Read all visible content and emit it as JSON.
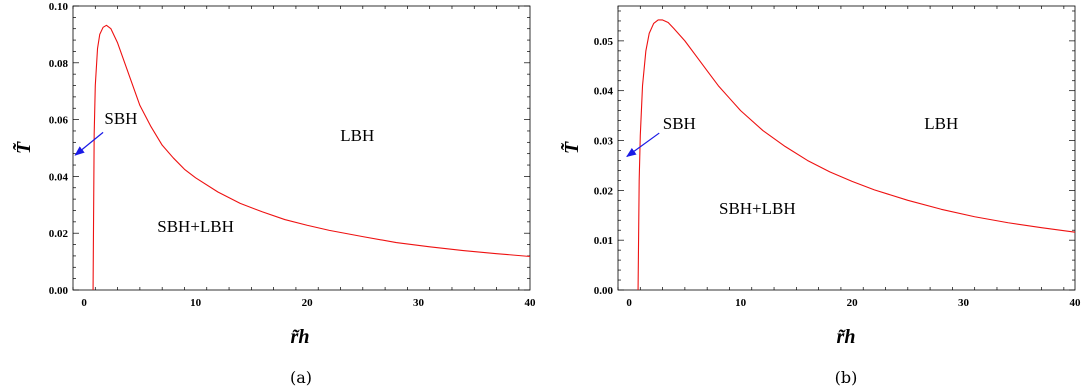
{
  "chart_data": [
    {
      "type": "line",
      "caption": "(a)",
      "xlabel": "r̃h",
      "ylabel": "T̃",
      "xlim": [
        -1,
        40
      ],
      "ylim": [
        0,
        0.1
      ],
      "xticks": [
        0,
        10,
        20,
        30,
        40
      ],
      "xtick_labels": [
        "0",
        "10",
        "20",
        "30",
        "40"
      ],
      "yticks": [
        0,
        0.02,
        0.04,
        0.06,
        0.08,
        0.1
      ],
      "ytick_labels": [
        "0.00",
        "0.02",
        "0.04",
        "0.06",
        "0.08",
        "0.10"
      ],
      "line_color": "#ee1111",
      "series": [
        {
          "x": [
            0.8,
            0.9,
            1.0,
            1.2,
            1.4,
            1.7,
            2.0,
            2.4,
            3.0,
            4.0,
            5.0,
            6.0,
            7.0,
            8.0,
            9.0,
            10.0,
            12.0,
            14.0,
            16.0,
            18.0,
            20.0,
            22.0,
            25.0,
            28.0,
            31.0,
            34.0,
            37.0,
            40.0
          ],
          "y": [
            0.0,
            0.055,
            0.072,
            0.085,
            0.09,
            0.0925,
            0.0932,
            0.092,
            0.087,
            0.076,
            0.065,
            0.0575,
            0.051,
            0.0465,
            0.0425,
            0.0395,
            0.0345,
            0.0305,
            0.0275,
            0.0248,
            0.0228,
            0.021,
            0.0188,
            0.0167,
            0.0152,
            0.0139,
            0.0128,
            0.0118
          ]
        }
      ],
      "annotations": [
        {
          "text": "SBH",
          "x": 3.3,
          "y": 0.0605
        },
        {
          "text": "LBH",
          "x": 24.5,
          "y": 0.0545
        },
        {
          "text": "SBH+LBH",
          "x": 10.0,
          "y": 0.0225
        }
      ],
      "arrow": {
        "from": [
          1.7,
          0.0555
        ],
        "to": [
          -0.8,
          0.0475
        ],
        "color": "#1a1ae6"
      }
    },
    {
      "type": "line",
      "caption": "(b)",
      "xlabel": "r̃h",
      "ylabel": "T̃",
      "xlim": [
        -1,
        40
      ],
      "ylim": [
        0,
        0.057
      ],
      "xticks": [
        0,
        10,
        20,
        30,
        40
      ],
      "xtick_labels": [
        "0",
        "10",
        "20",
        "30",
        "40"
      ],
      "yticks": [
        0,
        0.01,
        0.02,
        0.03,
        0.04,
        0.05
      ],
      "ytick_labels": [
        "0.00",
        "0.01",
        "0.02",
        "0.03",
        "0.04",
        "0.05"
      ],
      "line_color": "#ee1111",
      "series": [
        {
          "x": [
            0.8,
            0.9,
            1.0,
            1.2,
            1.5,
            1.8,
            2.2,
            2.6,
            3.0,
            3.5,
            4.0,
            5.0,
            6.0,
            7.0,
            8.0,
            9.0,
            10.0,
            12.0,
            14.0,
            16.0,
            18.0,
            20.0,
            22.0,
            25.0,
            28.0,
            31.0,
            34.0,
            37.0,
            40.0
          ],
          "y": [
            0.0,
            0.022,
            0.031,
            0.041,
            0.048,
            0.0515,
            0.0535,
            0.0542,
            0.0542,
            0.0537,
            0.0525,
            0.05,
            0.047,
            0.044,
            0.041,
            0.0385,
            0.036,
            0.032,
            0.0288,
            0.026,
            0.0237,
            0.0218,
            0.0201,
            0.018,
            0.0162,
            0.0147,
            0.0135,
            0.0125,
            0.0116
          ]
        }
      ],
      "annotations": [
        {
          "text": "SBH",
          "x": 4.5,
          "y": 0.0335
        },
        {
          "text": "LBH",
          "x": 28.0,
          "y": 0.0335
        },
        {
          "text": "SBH+LBH",
          "x": 11.5,
          "y": 0.0165
        }
      ],
      "arrow": {
        "from": [
          2.7,
          0.0315
        ],
        "to": [
          -0.2,
          0.0268
        ],
        "color": "#1a1ae6"
      }
    }
  ]
}
